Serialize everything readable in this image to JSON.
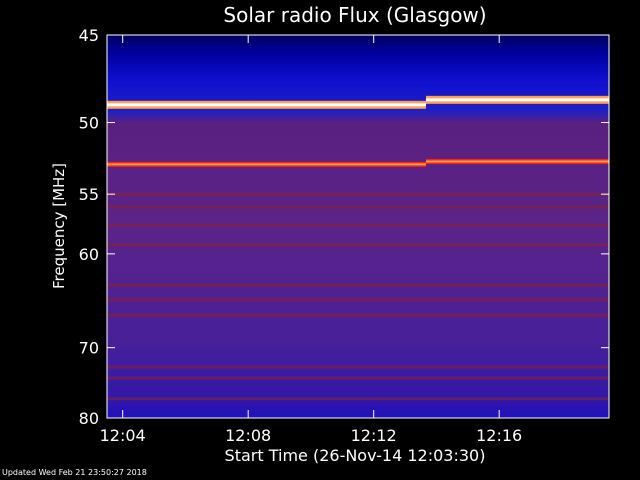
{
  "chart_data": {
    "type": "heatmap",
    "title": "Solar radio Flux (Glasgow)",
    "xlabel": "Start Time (26-Nov-14 12:03:30)",
    "ylabel": "Frequency [MHz]",
    "x_start": "12:03:30",
    "x_end": "12:19:30",
    "y_range": [
      45,
      80
    ],
    "x_ticks": [
      "12:04",
      "12:08",
      "12:12",
      "12:16"
    ],
    "y_ticks": [
      45,
      50,
      55,
      60,
      70,
      80
    ],
    "y_scale": "reciprocal",
    "colormap": [
      "#0000c0",
      "#3020a0",
      "#602078",
      "#902030",
      "#ff2010",
      "#ffa050",
      "#ffffff"
    ],
    "grid": false,
    "legend": false,
    "bright_bands_mhz": [
      {
        "freq": 48.9,
        "t_start": "12:03:30",
        "t_end": "12:13:40",
        "level": "max"
      },
      {
        "freq": 48.6,
        "t_start": "12:13:40",
        "t_end": "12:19:30",
        "level": "max"
      },
      {
        "freq": 52.8,
        "t_start": "12:03:30",
        "t_end": "12:13:40",
        "level": "high"
      },
      {
        "freq": 52.6,
        "t_start": "12:13:40",
        "t_end": "12:19:30",
        "level": "high"
      }
    ],
    "faint_bands_mhz": [
      55.0,
      56.0,
      57.5,
      59.2,
      63.0,
      64.5,
      66.2,
      72.5,
      74.0,
      77.0
    ]
  },
  "footer": {
    "updated": "Updated Wed Feb 21 23:50:27 2018"
  }
}
